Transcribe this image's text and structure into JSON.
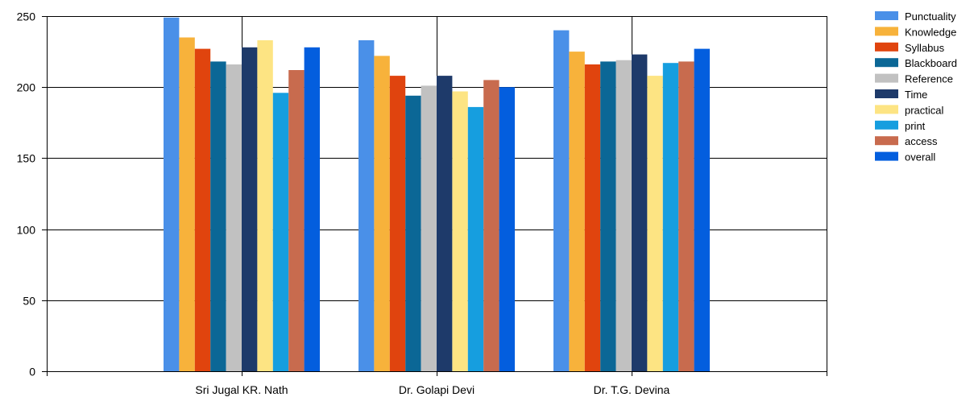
{
  "chart_data": {
    "type": "bar",
    "categories": [
      "Sri Jugal KR. Nath",
      "Dr. Golapi Devi",
      "Dr. T.G. Devina"
    ],
    "ylim": [
      0,
      250
    ],
    "yticks": [
      0,
      50,
      100,
      150,
      200,
      250
    ],
    "grid": true,
    "legend_position": "right",
    "series": [
      {
        "name": "Punctuality",
        "color": "#4a90e8",
        "values": [
          249,
          233,
          240
        ]
      },
      {
        "name": "Knowledge",
        "color": "#f7b23b",
        "values": [
          235,
          222,
          225
        ]
      },
      {
        "name": "Syllabus",
        "color": "#e0440e",
        "values": [
          227,
          208,
          216
        ]
      },
      {
        "name": "Blackboard",
        "color": "#0b6796",
        "values": [
          218,
          194,
          218
        ]
      },
      {
        "name": "Reference",
        "color": "#c1c1c1",
        "values": [
          216,
          201,
          219
        ]
      },
      {
        "name": "Time",
        "color": "#1e3a6a",
        "values": [
          228,
          208,
          223
        ]
      },
      {
        "name": "practical",
        "color": "#fde483",
        "values": [
          233,
          197,
          208
        ]
      },
      {
        "name": "print",
        "color": "#169edf",
        "values": [
          196,
          186,
          217
        ]
      },
      {
        "name": "access",
        "color": "#c86b4e",
        "values": [
          212,
          205,
          218
        ]
      },
      {
        "name": "overall",
        "color": "#035ede",
        "values": [
          228,
          200,
          227
        ]
      }
    ]
  }
}
